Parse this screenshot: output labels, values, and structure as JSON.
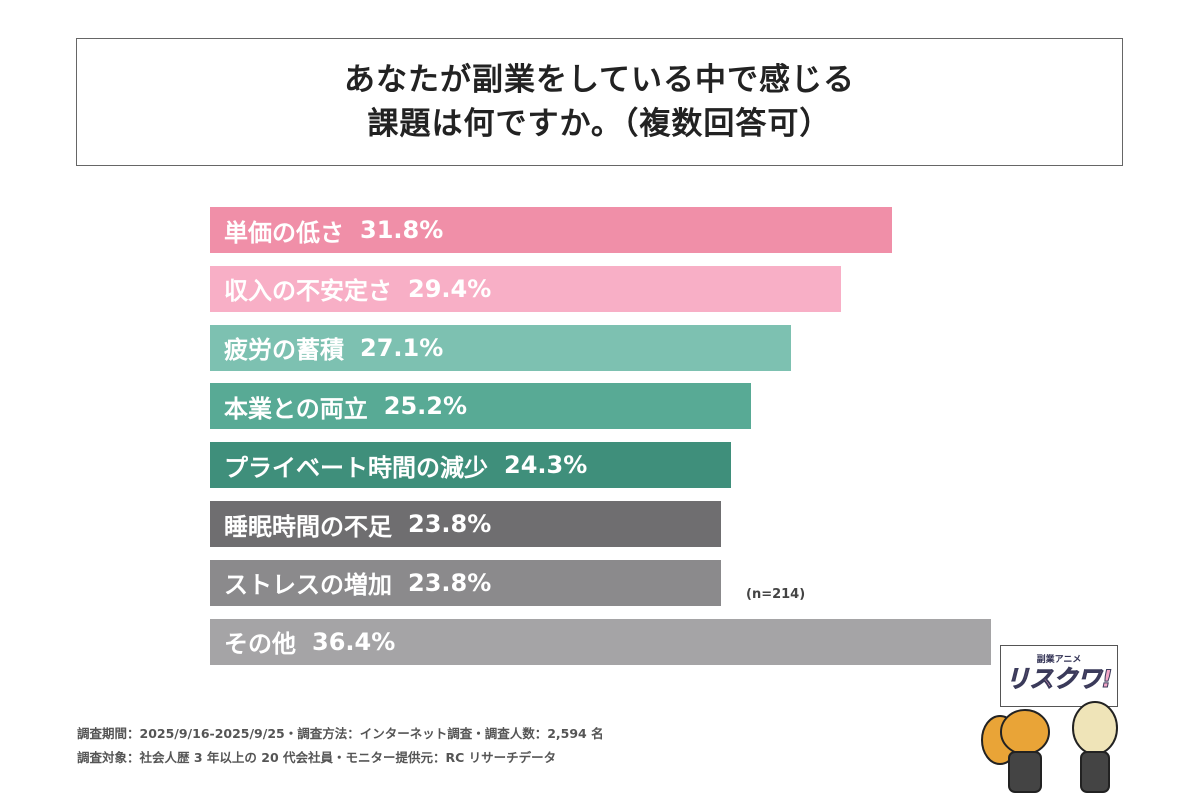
{
  "title": {
    "line1": "あなたが副業をしている中で感じる",
    "line2": "課題は何ですか。（複数回答可）"
  },
  "chart_data": {
    "type": "bar",
    "orientation": "horizontal",
    "categories": [
      "単価の低さ",
      "収入の不安定さ",
      "疲労の蓄積",
      "本業との両立",
      "プライベート時間の減少",
      "睡眠時間の不足",
      "ストレスの増加",
      "その他"
    ],
    "values": [
      31.8,
      29.4,
      27.1,
      25.2,
      24.3,
      23.8,
      23.8,
      36.4
    ],
    "value_labels": [
      "31.8%",
      "29.4%",
      "27.1%",
      "25.2%",
      "24.3%",
      "23.8%",
      "23.8%",
      "36.4%"
    ],
    "colors": [
      "#F08FA8",
      "#F8AFC6",
      "#7DC1B1",
      "#58AA95",
      "#3F8F7B",
      "#6F6E70",
      "#8B8A8C",
      "#A5A4A6"
    ],
    "xlim": [
      0,
      36.4
    ],
    "grid": false,
    "annotation": "(n=214)"
  },
  "footer": {
    "line1": "調査期間：2025/9/16-2025/9/25・調査方法：インターネット調査・調査人数：2,594 名",
    "line2": "調査対象：社会人歴 3 年以上の 20 代会社員・モニター提供元：RC リサーチデータ"
  },
  "logo": {
    "small": "副業アニメ",
    "big": "リスクワ!"
  }
}
